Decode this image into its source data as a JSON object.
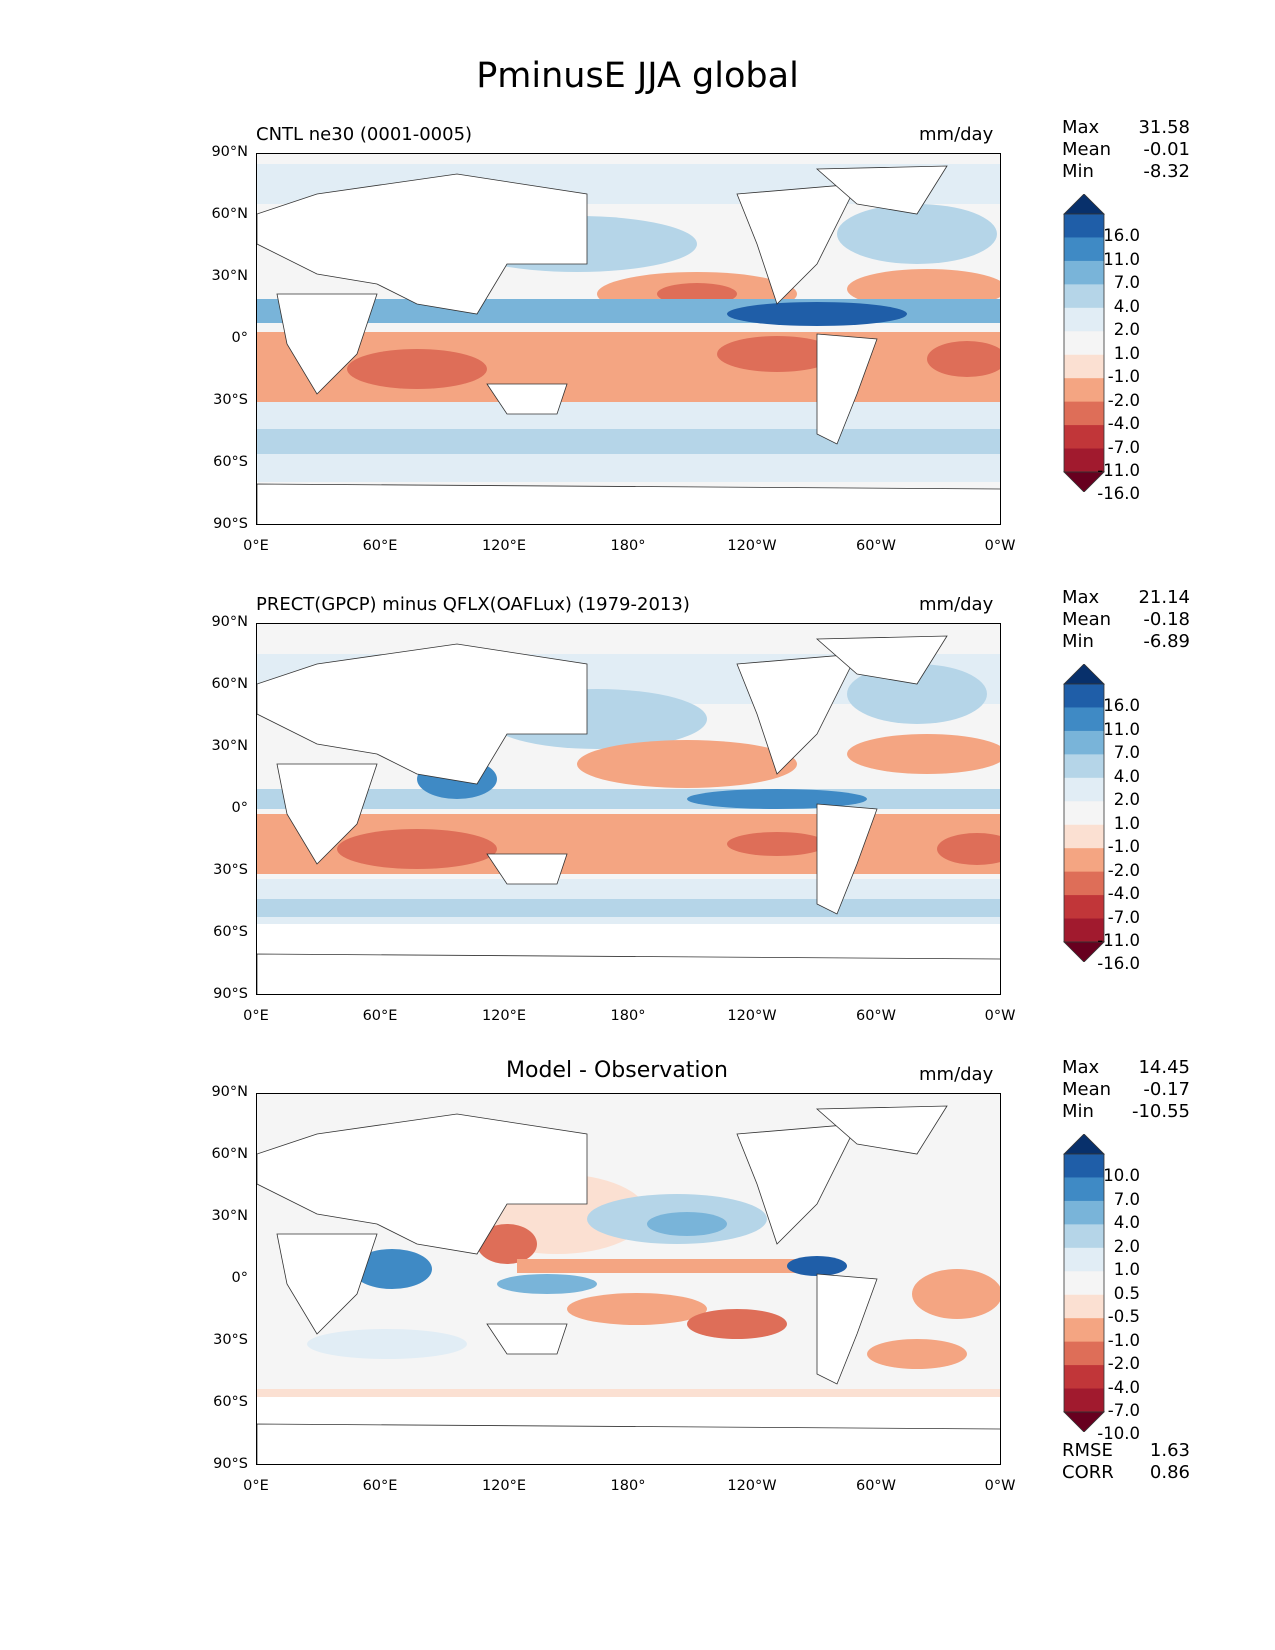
{
  "title": "PminusE JJA global",
  "lat_ticks": [
    "90°N",
    "60°N",
    "30°N",
    "0°",
    "30°S",
    "60°S",
    "90°S"
  ],
  "lon_ticks": [
    "0°E",
    "60°E",
    "120°E",
    "180°",
    "120°W",
    "60°W",
    "0°W"
  ],
  "chart_data": [
    {
      "type": "heatmap",
      "title": "CNTL ne30 (0001-0005)",
      "units": "mm/day",
      "stats": {
        "max_label": "Max",
        "max": "31.58",
        "mean_label": "Mean",
        "mean": "-0.01",
        "min_label": "Min",
        "min": "-8.32"
      },
      "levels": [
        "16.0",
        "11.0",
        "7.0",
        "4.0",
        "2.0",
        "1.0",
        "-1.0",
        "-2.0",
        "-4.0",
        "-7.0",
        "-11.0",
        "-16.0"
      ],
      "colormap": [
        "#08306b",
        "#1f5ea8",
        "#3f8ac5",
        "#79b4d9",
        "#b5d5e8",
        "#e1edf5",
        "#f5f5f5",
        "#fbe0d2",
        "#f4a582",
        "#de6e58",
        "#c13639",
        "#a11a2e",
        "#67001f"
      ]
    },
    {
      "type": "heatmap",
      "title": "PRECT(GPCP) minus QFLX(OAFLux) (1979-2013)",
      "units": "mm/day",
      "stats": {
        "max_label": "Max",
        "max": "21.14",
        "mean_label": "Mean",
        "mean": "-0.18",
        "min_label": "Min",
        "min": "-6.89"
      },
      "levels": [
        "16.0",
        "11.0",
        "7.0",
        "4.0",
        "2.0",
        "1.0",
        "-1.0",
        "-2.0",
        "-4.0",
        "-7.0",
        "-11.0",
        "-16.0"
      ],
      "colormap": [
        "#08306b",
        "#1f5ea8",
        "#3f8ac5",
        "#79b4d9",
        "#b5d5e8",
        "#e1edf5",
        "#f5f5f5",
        "#fbe0d2",
        "#f4a582",
        "#de6e58",
        "#c13639",
        "#a11a2e",
        "#67001f"
      ]
    },
    {
      "type": "heatmap",
      "title": "Model - Observation",
      "units": "mm/day",
      "stats": {
        "max_label": "Max",
        "max": "14.45",
        "mean_label": "Mean",
        "mean": "-0.17",
        "min_label": "Min",
        "min": "-10.55"
      },
      "levels": [
        "10.0",
        "7.0",
        "4.0",
        "2.0",
        "1.0",
        "0.5",
        "-0.5",
        "-1.0",
        "-2.0",
        "-4.0",
        "-7.0",
        "-10.0"
      ],
      "colormap": [
        "#08306b",
        "#1f5ea8",
        "#3f8ac5",
        "#79b4d9",
        "#b5d5e8",
        "#e1edf5",
        "#f5f5f5",
        "#fbe0d2",
        "#f4a582",
        "#de6e58",
        "#c13639",
        "#a11a2e",
        "#67001f"
      ],
      "metrics": {
        "rmse_label": "RMSE",
        "rmse": "1.63",
        "corr_label": "CORR",
        "corr": "0.86"
      }
    }
  ]
}
